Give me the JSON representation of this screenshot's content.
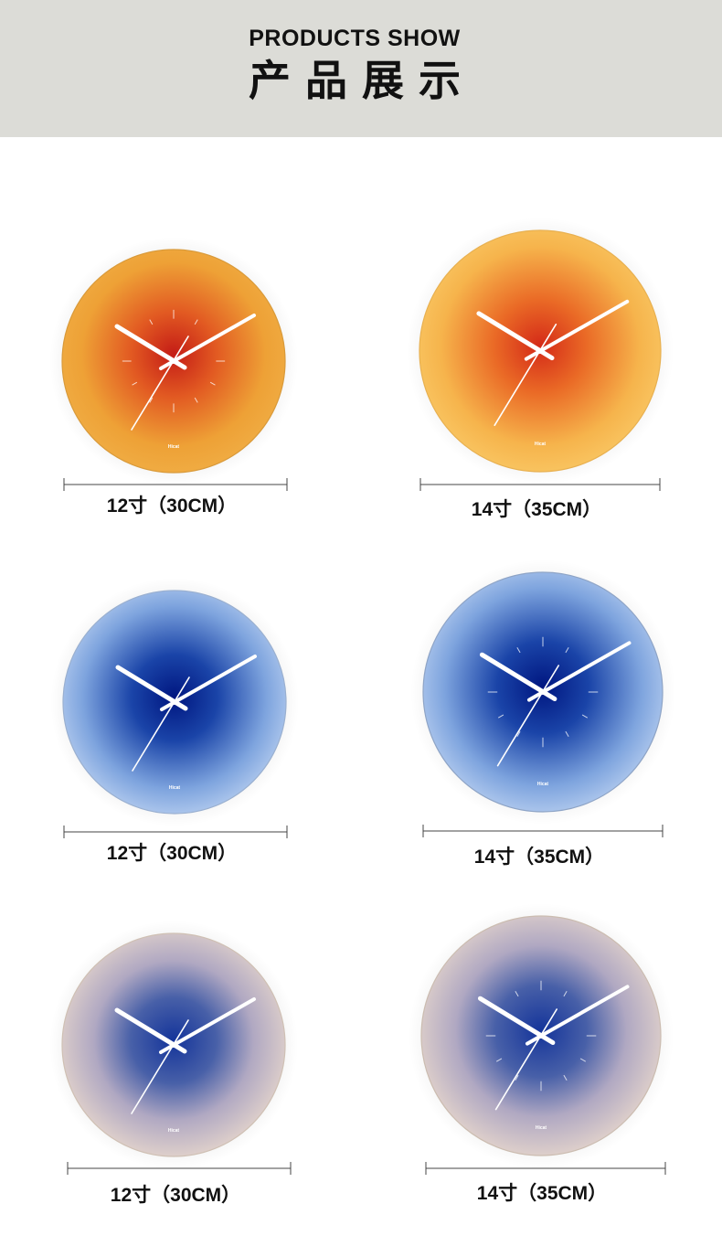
{
  "header": {
    "title_en": "PRODUCTS SHOW",
    "title_zh": "产品展示"
  },
  "brand": "Hicat",
  "products": [
    {
      "size": "12寸（30CM）"
    },
    {
      "size": "14寸（35CM）"
    },
    {
      "size": "12寸（30CM）"
    },
    {
      "size": "14寸（35CM）"
    },
    {
      "size": "12寸（30CM）"
    },
    {
      "size": "14寸（35CM）"
    }
  ]
}
